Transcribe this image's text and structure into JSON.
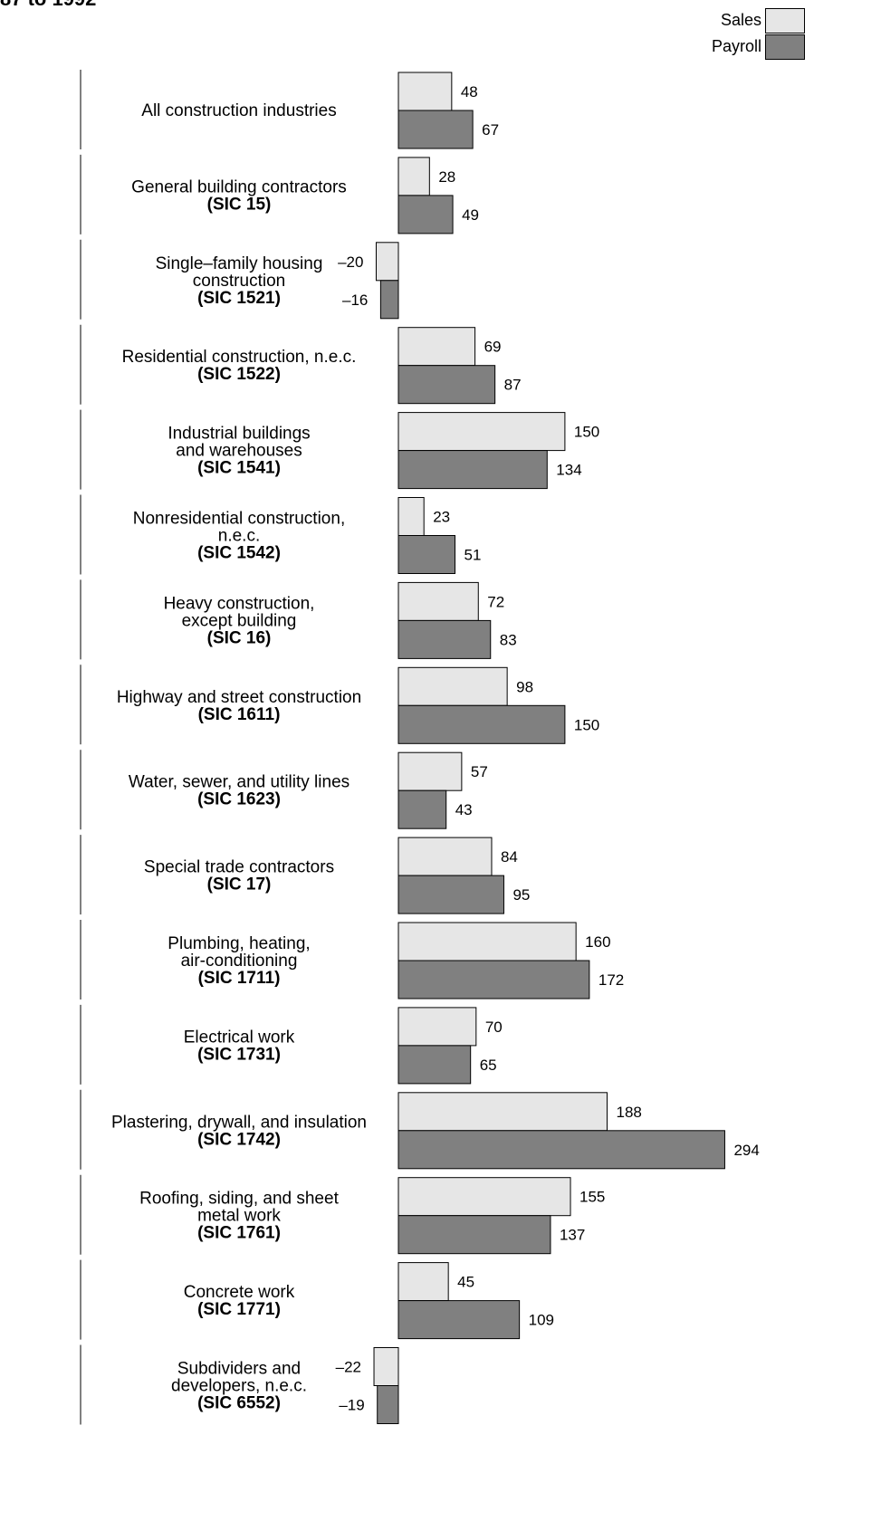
{
  "title": "87 to 1992",
  "legend": [
    {
      "name": "Sales",
      "color": "#e6e6e6"
    },
    {
      "name": "Payroll",
      "color": "#808080"
    }
  ],
  "colors": {
    "sales": "#e6e6e6",
    "payroll": "#808080",
    "outline": "#000000"
  },
  "chart_data": {
    "type": "bar",
    "orientation": "horizontal",
    "legend_position": "top-right",
    "grid": false,
    "xlabel": "",
    "ylabel": "",
    "categories": [
      {
        "lines": [
          "All construction industries"
        ],
        "code": ""
      },
      {
        "lines": [
          "General building contractors"
        ],
        "code": "(SIC 15)"
      },
      {
        "lines": [
          "Single–family housing",
          "construction"
        ],
        "code": "(SIC 1521)"
      },
      {
        "lines": [
          "Residential construction, n.e.c."
        ],
        "code": "(SIC 1522)"
      },
      {
        "lines": [
          "Industrial buildings",
          "and warehouses"
        ],
        "code": "(SIC 1541)"
      },
      {
        "lines": [
          "Nonresidential construction,",
          "n.e.c."
        ],
        "code": "(SIC 1542)"
      },
      {
        "lines": [
          "Heavy construction,",
          "except building"
        ],
        "code": "(SIC 16)"
      },
      {
        "lines": [
          "Highway and street construction"
        ],
        "code": "(SIC 1611)"
      },
      {
        "lines": [
          "Water, sewer, and utility lines"
        ],
        "code": "(SIC 1623)"
      },
      {
        "lines": [
          "Special trade contractors"
        ],
        "code": "(SIC 17)"
      },
      {
        "lines": [
          "Plumbing, heating,",
          "air-conditioning"
        ],
        "code": "(SIC 1711)"
      },
      {
        "lines": [
          "Electrical work"
        ],
        "code": "(SIC 1731)"
      },
      {
        "lines": [
          "Plastering, drywall, and insulation"
        ],
        "code": "(SIC 1742)"
      },
      {
        "lines": [
          "Roofing, siding, and sheet",
          "metal work"
        ],
        "code": "(SIC 1761)"
      },
      {
        "lines": [
          "Concrete work"
        ],
        "code": "(SIC 1771)"
      },
      {
        "lines": [
          "Subdividers and",
          "developers, n.e.c."
        ],
        "code": "(SIC 6552)"
      }
    ],
    "series": [
      {
        "name": "Sales",
        "values": [
          48,
          28,
          -20,
          69,
          150,
          23,
          72,
          98,
          57,
          84,
          160,
          70,
          188,
          155,
          45,
          -22
        ]
      },
      {
        "name": "Payroll",
        "values": [
          67,
          49,
          -16,
          87,
          134,
          51,
          83,
          150,
          43,
          95,
          172,
          65,
          294,
          137,
          109,
          -19
        ]
      }
    ],
    "value_labels": {
      "Sales": [
        "48",
        "28",
        "–20",
        "69",
        "150",
        "23",
        "72",
        "98",
        "57",
        "84",
        "160",
        "70",
        "188",
        "155",
        "45",
        "–22"
      ],
      "Payroll": [
        "67",
        "49",
        "–16",
        "87",
        "134",
        "51",
        "83",
        "150",
        "43",
        "95",
        "172",
        "65",
        "294",
        "137",
        "109",
        "–19"
      ]
    }
  }
}
